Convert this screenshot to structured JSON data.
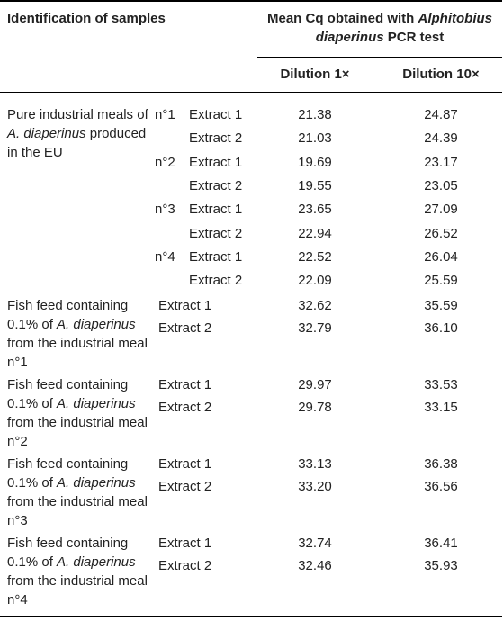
{
  "header": {
    "col1": "Identification of samples",
    "mean_title_line1_pre": "Mean Cq obtained with ",
    "mean_title_line1_ital": "Alphitobius",
    "mean_title_line2_ital": "diaperinus",
    "mean_title_line2_post": " PCR test",
    "dilution_1x": "Dilution 1×",
    "dilution_10x": "Dilution 10×"
  },
  "pure_group": {
    "label_line1": "Pure industrial meals of",
    "label_line2_ital": "A. diaperinus",
    "label_line2_post": " produced",
    "label_line3": "in the EU",
    "rows": [
      {
        "meal": "n°1",
        "extract": "Extract 1",
        "d1": "21.38",
        "d10": "24.87"
      },
      {
        "meal": "",
        "extract": "Extract 2",
        "d1": "21.03",
        "d10": "24.39"
      },
      {
        "meal": "n°2",
        "extract": "Extract 1",
        "d1": "19.69",
        "d10": "23.17"
      },
      {
        "meal": "",
        "extract": "Extract 2",
        "d1": "19.55",
        "d10": "23.05"
      },
      {
        "meal": "n°3",
        "extract": "Extract 1",
        "d1": "23.65",
        "d10": "27.09"
      },
      {
        "meal": "",
        "extract": "Extract 2",
        "d1": "22.94",
        "d10": "26.52"
      },
      {
        "meal": "n°4",
        "extract": "Extract 1",
        "d1": "22.52",
        "d10": "26.04"
      },
      {
        "meal": "",
        "extract": "Extract 2",
        "d1": "22.09",
        "d10": "25.59"
      }
    ]
  },
  "fish_groups": [
    {
      "line1": "Fish feed containing",
      "line2_pre": "0.1% of ",
      "line2_ital": "A. diaperinus",
      "line3": "from the industrial meal",
      "line4": "n°1",
      "rows": [
        {
          "extract": "Extract 1",
          "d1": "32.62",
          "d10": "35.59"
        },
        {
          "extract": "Extract 2",
          "d1": "32.79",
          "d10": "36.10"
        }
      ]
    },
    {
      "line1": "Fish feed containing",
      "line2_pre": "0.1% of ",
      "line2_ital": "A. diaperinus",
      "line3": "from the industrial meal",
      "line4": "n°2",
      "rows": [
        {
          "extract": "Extract 1",
          "d1": "29.97",
          "d10": "33.53"
        },
        {
          "extract": "Extract 2",
          "d1": "29.78",
          "d10": "33.15"
        }
      ]
    },
    {
      "line1": "Fish feed containing",
      "line2_pre": "0.1% of ",
      "line2_ital": "A. diaperinus",
      "line3": "from the industrial meal",
      "line4": "n°3",
      "rows": [
        {
          "extract": "Extract 1",
          "d1": "33.13",
          "d10": "36.38"
        },
        {
          "extract": "Extract 2",
          "d1": "33.20",
          "d10": "36.56"
        }
      ]
    },
    {
      "line1": "Fish feed containing",
      "line2_pre": "0.1% of ",
      "line2_ital": "A. diaperinus",
      "line3": "from the industrial meal",
      "line4": "n°4",
      "rows": [
        {
          "extract": "Extract 1",
          "d1": "32.74",
          "d10": "36.41"
        },
        {
          "extract": "Extract 2",
          "d1": "32.46",
          "d10": "35.93"
        }
      ]
    }
  ]
}
